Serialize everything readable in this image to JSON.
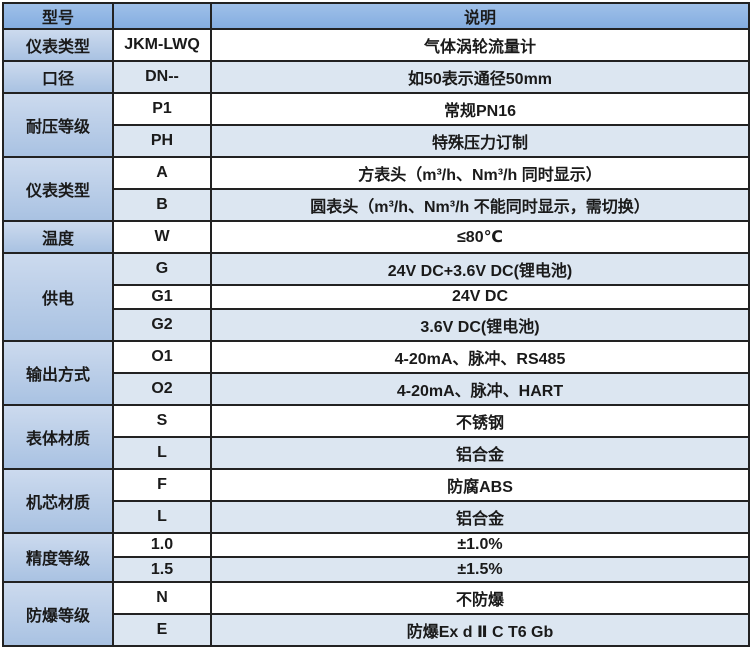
{
  "theme": {
    "header_blue": "#8db4e2",
    "category_blue": "#b8cce4",
    "alt_row_blue": "#dce6f1",
    "border_color": "#222222",
    "text_color": "#1a1a1a"
  },
  "table": {
    "header": {
      "model_label": "型号",
      "code_label": "",
      "description_label": "说明"
    },
    "groups": [
      {
        "category": "仪表类型",
        "rows": [
          {
            "code": "JKM-LWQ",
            "desc": "气体涡轮流量计"
          }
        ]
      },
      {
        "category": "口径",
        "rows": [
          {
            "code": "DN--",
            "desc": "如50表示通径50mm"
          }
        ]
      },
      {
        "category": "耐压等级",
        "rows": [
          {
            "code": "P1",
            "desc": "常规PN16"
          },
          {
            "code": "PH",
            "desc": "特殊压力订制"
          }
        ]
      },
      {
        "category": "仪表类型",
        "rows": [
          {
            "code": "A",
            "desc": "方表头（m³/h、Nm³/h 同时显示）"
          },
          {
            "code": "B",
            "desc": "圆表头（m³/h、Nm³/h 不能同时显示，需切换）"
          }
        ]
      },
      {
        "category": "温度",
        "rows": [
          {
            "code": "W",
            "desc": "≤80℃"
          }
        ]
      },
      {
        "category": "供电",
        "rows": [
          {
            "code": "G",
            "desc": "24V DC+3.6V DC(锂电池)"
          },
          {
            "code": "G1",
            "desc": "24V DC"
          },
          {
            "code": "G2",
            "desc": "3.6V DC(锂电池)"
          }
        ]
      },
      {
        "category": "输出方式",
        "rows": [
          {
            "code": "O1",
            "desc": "4-20mA、脉冲、RS485"
          },
          {
            "code": "O2",
            "desc": "4-20mA、脉冲、HART"
          }
        ]
      },
      {
        "category": "表体材质",
        "rows": [
          {
            "code": "S",
            "desc": "不锈钢"
          },
          {
            "code": "L",
            "desc": "铝合金"
          }
        ]
      },
      {
        "category": "机芯材质",
        "rows": [
          {
            "code": "F",
            "desc": "防腐ABS"
          },
          {
            "code": "L",
            "desc": "铝合金"
          }
        ]
      },
      {
        "category": "精度等级",
        "rows": [
          {
            "code": "1.0",
            "desc": "±1.0%"
          },
          {
            "code": "1.5",
            "desc": "±1.5%"
          }
        ]
      },
      {
        "category": "防爆等级",
        "rows": [
          {
            "code": "N",
            "desc": "不防爆"
          },
          {
            "code": "E",
            "desc": "防爆Ex d Ⅱ C T6 Gb"
          }
        ]
      }
    ]
  }
}
